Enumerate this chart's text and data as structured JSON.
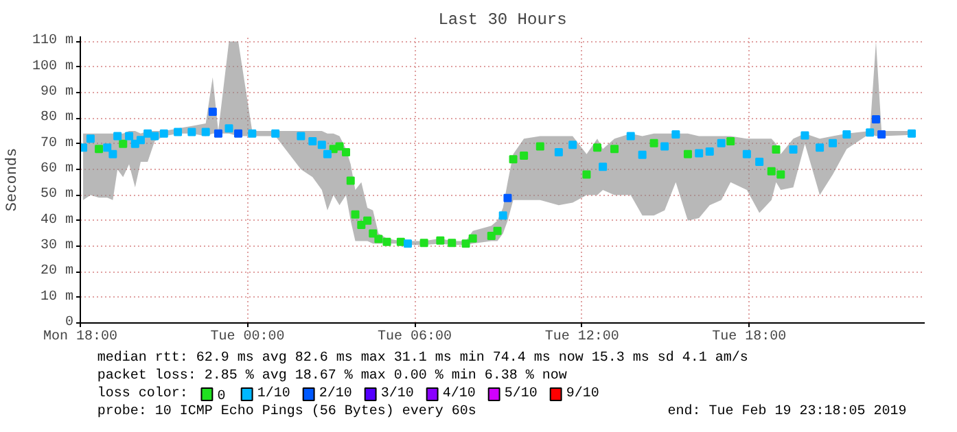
{
  "chart_data": {
    "type": "scatter",
    "title": "Last 30 Hours",
    "ylabel": "Seconds",
    "marker": "square",
    "grid": true,
    "legend": "bottom",
    "legend_title": "loss color:",
    "xlim": [
      "2019-02-18T18:00",
      "2019-02-20T00:18"
    ],
    "ylim": [
      0,
      112
    ],
    "xticks": [
      {
        "value": "2019-02-18T18:00",
        "label": "Mon 18:00"
      },
      {
        "value": "2019-02-19T00:00",
        "label": "Tue 00:00"
      },
      {
        "value": "2019-02-19T06:00",
        "label": "Tue 06:00"
      },
      {
        "value": "2019-02-19T12:00",
        "label": "Tue 12:00"
      },
      {
        "value": "2019-02-19T18:00",
        "label": "Tue 18:00"
      }
    ],
    "yticks": [
      0,
      {
        "value": 10,
        "label": "10 m"
      },
      {
        "value": 20,
        "label": "20 m"
      },
      {
        "value": 30,
        "label": "30 m"
      },
      {
        "value": 40,
        "label": "40 m"
      },
      {
        "value": 50,
        "label": "50 m"
      },
      {
        "value": 60,
        "label": "60 m"
      },
      {
        "value": 70,
        "label": "70 m"
      },
      {
        "value": 80,
        "label": "80 m"
      },
      {
        "value": 90,
        "label": "90 m"
      },
      {
        "value": 100,
        "label": "100 m"
      },
      {
        "value": 110,
        "label": "110 m"
      }
    ],
    "x": [
      "2019-02-18T18:06",
      "2019-02-18T18:22",
      "2019-02-18T18:40",
      "2019-02-18T18:58",
      "2019-02-18T19:10",
      "2019-02-18T19:20",
      "2019-02-18T19:32",
      "2019-02-18T19:45",
      "2019-02-18T19:58",
      "2019-02-18T20:10",
      "2019-02-18T20:25",
      "2019-02-18T20:40",
      "2019-02-18T21:00",
      "2019-02-18T21:30",
      "2019-02-18T22:00",
      "2019-02-18T22:30",
      "2019-02-18T22:45",
      "2019-02-18T22:57",
      "2019-02-18T23:20",
      "2019-02-18T23:40",
      "2019-02-19T00:10",
      "2019-02-19T01:00",
      "2019-02-19T01:55",
      "2019-02-19T02:20",
      "2019-02-19T02:40",
      "2019-02-19T02:52",
      "2019-02-19T03:05",
      "2019-02-19T03:18",
      "2019-02-19T03:32",
      "2019-02-19T03:42",
      "2019-02-19T03:52",
      "2019-02-19T04:05",
      "2019-02-19T04:18",
      "2019-02-19T04:30",
      "2019-02-19T04:42",
      "2019-02-19T05:00",
      "2019-02-19T05:30",
      "2019-02-19T05:45",
      "2019-02-19T06:20",
      "2019-02-19T06:55",
      "2019-02-19T07:20",
      "2019-02-19T07:50",
      "2019-02-19T08:05",
      "2019-02-19T08:45",
      "2019-02-19T08:58",
      "2019-02-19T09:10",
      "2019-02-19T09:20",
      "2019-02-19T09:32",
      "2019-02-19T09:55",
      "2019-02-19T10:30",
      "2019-02-19T11:10",
      "2019-02-19T11:40",
      "2019-02-19T12:10",
      "2019-02-19T12:33",
      "2019-02-19T12:45",
      "2019-02-19T13:10",
      "2019-02-19T13:45",
      "2019-02-19T14:10",
      "2019-02-19T14:35",
      "2019-02-19T14:58",
      "2019-02-19T15:22",
      "2019-02-19T15:48",
      "2019-02-19T16:12",
      "2019-02-19T16:35",
      "2019-02-19T17:00",
      "2019-02-19T17:20",
      "2019-02-19T17:55",
      "2019-02-19T18:22",
      "2019-02-19T18:48",
      "2019-02-19T18:58",
      "2019-02-19T19:08",
      "2019-02-19T19:35",
      "2019-02-19T20:00",
      "2019-02-19T20:32",
      "2019-02-19T21:00",
      "2019-02-19T21:30",
      "2019-02-19T22:20",
      "2019-02-19T22:33",
      "2019-02-19T22:45",
      "2019-02-19T23:50"
    ],
    "series": [
      {
        "name": "0",
        "color": "#20e020",
        "values": [
          null,
          null,
          68,
          null,
          null,
          null,
          70,
          null,
          null,
          null,
          null,
          null,
          null,
          null,
          null,
          null,
          null,
          null,
          null,
          null,
          null,
          null,
          null,
          null,
          null,
          null,
          68,
          69,
          66.7,
          55.6,
          42.4,
          38.3,
          40,
          35,
          32.8,
          31.7,
          31.7,
          null,
          31.3,
          32.2,
          31.3,
          31,
          33,
          34,
          36,
          null,
          null,
          64,
          65.4,
          69,
          null,
          null,
          58,
          68.5,
          null,
          68,
          null,
          null,
          70.3,
          null,
          null,
          66,
          null,
          null,
          null,
          71,
          null,
          null,
          59.3,
          67.8,
          58,
          null,
          null,
          null,
          null,
          null,
          null,
          null,
          null,
          null
        ],
        "lower": [
          48,
          50,
          49,
          49,
          48,
          60,
          57,
          62,
          53,
          63,
          63,
          71,
          73,
          74,
          74,
          73,
          74,
          74,
          74,
          73,
          73,
          73,
          60,
          57,
          52,
          44,
          50,
          46,
          50,
          40,
          32,
          32,
          32,
          31,
          31,
          31,
          31,
          30.5,
          30.5,
          31,
          30.5,
          30.5,
          31,
          32,
          32,
          35,
          40,
          48,
          48,
          48,
          46,
          47,
          50,
          50,
          52,
          50,
          50,
          42,
          42,
          44,
          55,
          40,
          41,
          46,
          48,
          55,
          52,
          43,
          48,
          55,
          52,
          53,
          70,
          50,
          58,
          68,
          74,
          73,
          73,
          73.5
        ],
        "upper": [
          74,
          74,
          74,
          74,
          74,
          74,
          74,
          75,
          75,
          74,
          75,
          75,
          75,
          76,
          77,
          78,
          96,
          75,
          110,
          110,
          75,
          75,
          75,
          75,
          75,
          74,
          74,
          73,
          68,
          62,
          52,
          55,
          45,
          44,
          35,
          33,
          32,
          32,
          32,
          33,
          32,
          32,
          36,
          38,
          40,
          45,
          55,
          66,
          72,
          73,
          73,
          73,
          66,
          72,
          68,
          72,
          74,
          73,
          74,
          74,
          74,
          74,
          73,
          73,
          73,
          73,
          72,
          72,
          72,
          70,
          66,
          72,
          74,
          72,
          73,
          74,
          75,
          110,
          75,
          75
        ]
      },
      {
        "name": "1/10",
        "color": "#00b8ff",
        "values": [
          68.5,
          72,
          null,
          68.5,
          66,
          73,
          null,
          73,
          70,
          71.5,
          74,
          73,
          74,
          74.6,
          74.6,
          74.6,
          null,
          null,
          76,
          null,
          74,
          74,
          73,
          71,
          69.6,
          66,
          null,
          null,
          null,
          null,
          null,
          null,
          null,
          null,
          null,
          null,
          null,
          31,
          null,
          null,
          null,
          null,
          null,
          null,
          null,
          42,
          null,
          null,
          null,
          null,
          66.7,
          69.6,
          null,
          null,
          61,
          null,
          73,
          65.7,
          null,
          69,
          73.7,
          null,
          66.3,
          67,
          70.3,
          null,
          66,
          63,
          null,
          null,
          null,
          67.8,
          73.3,
          68.5,
          70.3,
          73.7,
          74.4,
          null,
          null,
          74
        ]
      },
      {
        "name": "2/10",
        "color": "#0059ff",
        "values": [
          null,
          null,
          null,
          null,
          null,
          null,
          null,
          null,
          null,
          null,
          null,
          null,
          null,
          null,
          null,
          null,
          82.5,
          74,
          null,
          74,
          null,
          null,
          null,
          null,
          null,
          null,
          null,
          null,
          null,
          null,
          null,
          null,
          null,
          null,
          null,
          null,
          null,
          null,
          null,
          null,
          null,
          null,
          null,
          null,
          null,
          null,
          48.8,
          null,
          null,
          null,
          null,
          null,
          null,
          null,
          null,
          null,
          null,
          null,
          null,
          null,
          null,
          null,
          null,
          null,
          null,
          null,
          null,
          null,
          null,
          null,
          null,
          null,
          null,
          null,
          null,
          null,
          null,
          79.6,
          73.7,
          null
        ]
      },
      {
        "name": "3/10",
        "color": "#5500ff",
        "values": [
          null,
          null,
          null,
          null,
          null,
          null,
          null,
          null,
          null,
          null,
          null,
          null,
          null,
          null,
          null,
          null,
          null,
          null,
          null,
          null,
          null,
          null,
          null,
          null,
          null,
          null,
          null,
          null,
          null,
          null,
          null,
          null,
          null,
          null,
          null,
          null,
          null,
          null,
          null,
          null,
          null,
          null,
          null,
          null,
          null,
          null,
          null,
          null,
          null,
          null,
          null,
          null,
          null,
          null,
          null,
          null,
          null,
          null,
          null,
          null,
          null,
          null,
          null,
          null,
          null,
          null,
          null,
          null,
          null,
          null,
          null,
          null,
          null,
          null,
          null,
          null,
          null,
          null,
          null,
          null
        ]
      },
      {
        "name": "4/10",
        "color": "#8a00ff",
        "values": [
          null,
          null,
          null,
          null,
          null,
          null,
          null,
          null,
          null,
          null,
          null,
          null,
          null,
          null,
          null,
          null,
          null,
          null,
          null,
          null,
          null,
          null,
          null,
          null,
          null,
          null,
          null,
          null,
          null,
          null,
          null,
          null,
          null,
          null,
          null,
          null,
          null,
          null,
          null,
          null,
          null,
          null,
          null,
          null,
          null,
          null,
          null,
          null,
          null,
          null,
          null,
          null,
          null,
          null,
          null,
          null,
          null,
          null,
          null,
          null,
          null,
          null,
          null,
          null,
          null,
          null,
          null,
          null,
          null,
          null,
          null,
          null,
          null,
          null,
          null,
          null,
          null,
          null,
          null,
          null
        ]
      },
      {
        "name": "5/10",
        "color": "#d000ff",
        "values": [
          null,
          null,
          null,
          null,
          null,
          null,
          null,
          null,
          null,
          null,
          null,
          null,
          null,
          null,
          null,
          null,
          null,
          null,
          null,
          null,
          null,
          null,
          null,
          null,
          null,
          null,
          null,
          null,
          null,
          null,
          null,
          null,
          null,
          null,
          null,
          null,
          null,
          null,
          null,
          null,
          null,
          null,
          null,
          null,
          null,
          null,
          null,
          null,
          null,
          null,
          null,
          null,
          null,
          null,
          null,
          null,
          null,
          null,
          null,
          null,
          null,
          null,
          null,
          null,
          null,
          null,
          null,
          null,
          null,
          null,
          null,
          null,
          null,
          null,
          null,
          null,
          null,
          null,
          null,
          null
        ]
      },
      {
        "name": "9/10",
        "color": "#ff0000",
        "values": [
          null,
          null,
          null,
          null,
          null,
          null,
          null,
          null,
          null,
          null,
          null,
          null,
          null,
          null,
          null,
          null,
          null,
          null,
          null,
          null,
          null,
          null,
          null,
          null,
          null,
          null,
          null,
          null,
          null,
          null,
          null,
          null,
          null,
          null,
          null,
          null,
          null,
          null,
          null,
          null,
          null,
          null,
          null,
          null,
          null,
          null,
          null,
          null,
          null,
          null,
          null,
          null,
          null,
          null,
          null,
          null,
          null,
          null,
          null,
          null,
          null,
          null,
          null,
          null,
          null,
          null,
          null,
          null,
          null,
          null,
          null,
          null,
          null,
          null,
          null,
          null,
          null,
          null,
          null,
          null
        ]
      }
    ],
    "annotations": [
      "median rtt:  62.9 ms avg  82.6 ms max  31.1 ms min  74.4 ms now  15.3 ms sd  4.1   am/s",
      "packet loss: 2.85 % avg  18.67 % max  0.00 % min  6.38 % now",
      "probe:       10 ICMP Echo Pings (56 Bytes) every 60s",
      "end: Tue Feb 19 23:18:05 2019"
    ]
  }
}
